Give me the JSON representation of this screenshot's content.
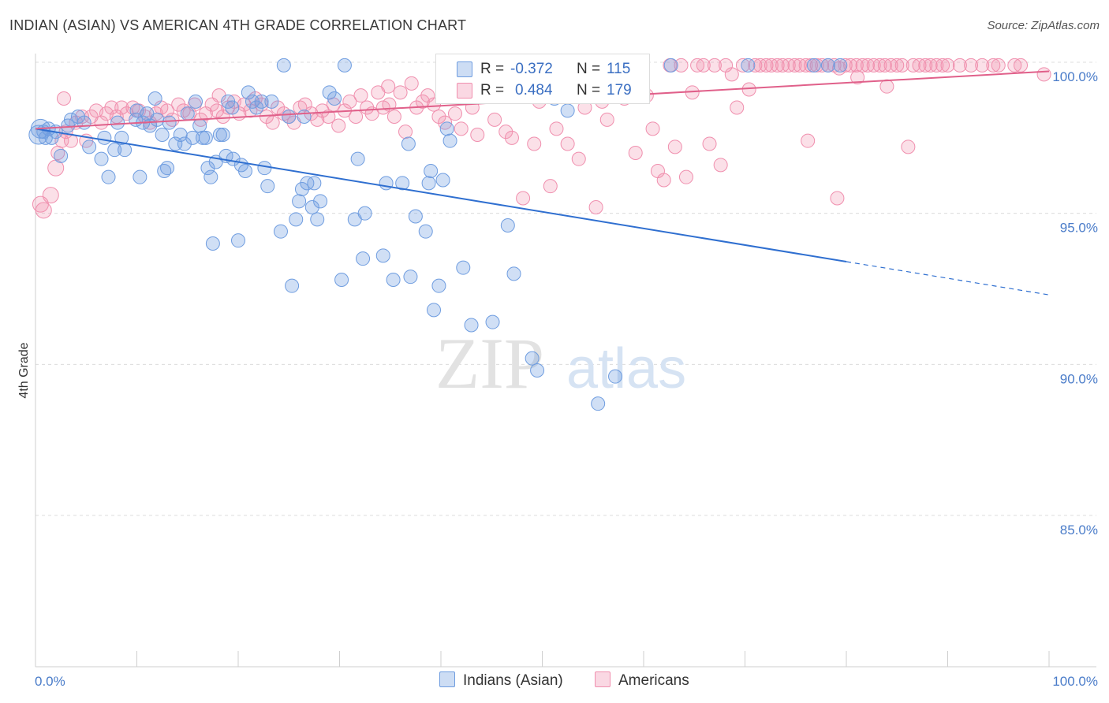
{
  "header": {
    "title": "INDIAN (ASIAN) VS AMERICAN 4TH GRADE CORRELATION CHART",
    "source": "Source: ZipAtlas.com"
  },
  "watermark": {
    "zip": "ZIP",
    "atlas": "atlas"
  },
  "legend": {
    "r_label": "R =",
    "n_label": "N =",
    "rows": [
      {
        "name": "Indians (Asian)",
        "r": "-0.372",
        "n": "115",
        "color": "#6f9de0"
      },
      {
        "name": "Americans",
        "r": "0.484",
        "n": "179",
        "color": "#f08fae"
      }
    ]
  },
  "chart_data": {
    "type": "scatter",
    "title": "INDIAN (ASIAN) VS AMERICAN 4TH GRADE CORRELATION CHART",
    "xlabel": "",
    "ylabel": "4th Grade",
    "xlim": [
      0,
      100
    ],
    "ylim": [
      80.5,
      100.5
    ],
    "x_tick_labels": [
      "0.0%",
      "100.0%"
    ],
    "y_ticks": [
      100,
      95,
      90,
      85
    ],
    "y_tick_labels": [
      "100.0%",
      "95.0%",
      "90.0%",
      "85.0%"
    ],
    "grid": true,
    "legend_position": "bottom-center",
    "colors": {
      "Indians (Asian)": "#6f9de0",
      "Americans": "#f08fae",
      "Indians (Asian) line": "#2f6fd0",
      "Americans line": "#e0608a"
    },
    "series": [
      {
        "name": "Indians (Asian)",
        "trend": {
          "x": [
            0,
            80
          ],
          "y": [
            97.8,
            93.4
          ],
          "dashed_to": [
            100,
            92.3
          ]
        },
        "points": [
          [
            0.3,
            97.6
          ],
          [
            0.5,
            97.8
          ],
          [
            0.8,
            97.7
          ],
          [
            1.0,
            97.5
          ],
          [
            1.3,
            97.8
          ],
          [
            1.6,
            97.5
          ],
          [
            2.0,
            97.7
          ],
          [
            2.5,
            96.9
          ],
          [
            3.2,
            97.9
          ],
          [
            3.5,
            98.1
          ],
          [
            4.2,
            98.2
          ],
          [
            4.8,
            98.0
          ],
          [
            5.3,
            97.2
          ],
          [
            6.5,
            96.8
          ],
          [
            6.8,
            97.5
          ],
          [
            7.2,
            96.2
          ],
          [
            7.8,
            97.1
          ],
          [
            8.1,
            98.0
          ],
          [
            8.5,
            97.5
          ],
          [
            8.8,
            97.1
          ],
          [
            10.0,
            98.4
          ],
          [
            10.3,
            96.2
          ],
          [
            10.6,
            98.0
          ],
          [
            11.0,
            98.3
          ],
          [
            11.3,
            97.9
          ],
          [
            11.8,
            98.8
          ],
          [
            12.0,
            98.1
          ],
          [
            12.5,
            97.6
          ],
          [
            12.7,
            96.4
          ],
          [
            13.2,
            98.0
          ],
          [
            13.0,
            96.5
          ],
          [
            13.8,
            97.3
          ],
          [
            14.3,
            97.6
          ],
          [
            14.7,
            97.3
          ],
          [
            15.0,
            98.3
          ],
          [
            15.5,
            97.5
          ],
          [
            15.8,
            98.7
          ],
          [
            16.2,
            97.9
          ],
          [
            16.5,
            97.5
          ],
          [
            16.8,
            97.5
          ],
          [
            17.0,
            96.5
          ],
          [
            17.3,
            96.2
          ],
          [
            17.5,
            94.0
          ],
          [
            17.8,
            96.7
          ],
          [
            18.2,
            97.6
          ],
          [
            18.5,
            97.6
          ],
          [
            18.8,
            96.9
          ],
          [
            19.0,
            98.7
          ],
          [
            19.5,
            96.8
          ],
          [
            20.0,
            94.1
          ],
          [
            20.3,
            96.6
          ],
          [
            20.7,
            96.4
          ],
          [
            21.0,
            99.0
          ],
          [
            21.4,
            98.7
          ],
          [
            21.8,
            98.5
          ],
          [
            22.3,
            98.7
          ],
          [
            22.6,
            96.5
          ],
          [
            22.9,
            95.9
          ],
          [
            23.3,
            98.7
          ],
          [
            24.2,
            94.4
          ],
          [
            24.5,
            99.9
          ],
          [
            25.0,
            98.2
          ],
          [
            25.3,
            92.6
          ],
          [
            25.7,
            94.8
          ],
          [
            26.0,
            95.4
          ],
          [
            26.3,
            95.8
          ],
          [
            26.8,
            96.0
          ],
          [
            27.3,
            95.2
          ],
          [
            27.5,
            96.0
          ],
          [
            27.8,
            94.8
          ],
          [
            28.1,
            95.4
          ],
          [
            29.0,
            99.0
          ],
          [
            29.5,
            98.8
          ],
          [
            30.2,
            92.8
          ],
          [
            30.5,
            99.9
          ],
          [
            31.5,
            94.8
          ],
          [
            31.8,
            96.8
          ],
          [
            32.3,
            93.5
          ],
          [
            32.5,
            95.0
          ],
          [
            34.3,
            93.6
          ],
          [
            34.6,
            96.0
          ],
          [
            35.3,
            92.8
          ],
          [
            36.2,
            96.0
          ],
          [
            36.8,
            97.3
          ],
          [
            37.0,
            92.9
          ],
          [
            37.5,
            94.9
          ],
          [
            38.5,
            94.4
          ],
          [
            38.8,
            96.0
          ],
          [
            39.0,
            96.4
          ],
          [
            39.3,
            91.8
          ],
          [
            39.8,
            92.6
          ],
          [
            40.2,
            96.1
          ],
          [
            40.6,
            97.8
          ],
          [
            40.9,
            97.4
          ],
          [
            42.2,
            93.2
          ],
          [
            43.0,
            91.3
          ],
          [
            44.3,
            99.9
          ],
          [
            45.1,
            91.4
          ],
          [
            46.6,
            94.6
          ],
          [
            47.2,
            93.0
          ],
          [
            49.0,
            90.2
          ],
          [
            49.5,
            89.8
          ],
          [
            51.2,
            98.8
          ],
          [
            52.5,
            98.4
          ],
          [
            55.5,
            88.7
          ],
          [
            57.2,
            89.6
          ],
          [
            70.3,
            99.9
          ],
          [
            76.8,
            99.9
          ],
          [
            78.2,
            99.9
          ],
          [
            79.4,
            99.9
          ],
          [
            49.8,
            99.9
          ],
          [
            59.0,
            99.9
          ],
          [
            62.7,
            99.9
          ],
          [
            19.4,
            98.5
          ],
          [
            26.5,
            98.2
          ],
          [
            9.9,
            98.1
          ]
        ]
      },
      {
        "name": "Americans",
        "trend": {
          "x": [
            0,
            100
          ],
          "y": [
            97.8,
            99.7
          ]
        },
        "points": [
          [
            0.5,
            95.3
          ],
          [
            0.8,
            95.1
          ],
          [
            1.5,
            95.6
          ],
          [
            2.0,
            96.5
          ],
          [
            2.2,
            97.0
          ],
          [
            2.6,
            97.4
          ],
          [
            3.0,
            97.7
          ],
          [
            3.5,
            97.4
          ],
          [
            4.0,
            98.0
          ],
          [
            4.6,
            98.2
          ],
          [
            5.0,
            97.4
          ],
          [
            5.5,
            98.2
          ],
          [
            6.0,
            98.4
          ],
          [
            6.5,
            98.0
          ],
          [
            7.0,
            98.3
          ],
          [
            7.5,
            98.5
          ],
          [
            8.0,
            98.2
          ],
          [
            8.5,
            98.5
          ],
          [
            9.0,
            98.3
          ],
          [
            9.6,
            98.5
          ],
          [
            10.2,
            98.4
          ],
          [
            10.8,
            98.2
          ],
          [
            11.3,
            98.0
          ],
          [
            11.9,
            98.3
          ],
          [
            12.4,
            98.5
          ],
          [
            13.0,
            98.4
          ],
          [
            13.5,
            98.1
          ],
          [
            14.1,
            98.6
          ],
          [
            14.6,
            98.4
          ],
          [
            15.2,
            98.3
          ],
          [
            15.7,
            98.6
          ],
          [
            16.3,
            98.1
          ],
          [
            16.8,
            98.3
          ],
          [
            17.4,
            98.6
          ],
          [
            17.9,
            98.4
          ],
          [
            18.5,
            98.2
          ],
          [
            19.0,
            98.5
          ],
          [
            19.6,
            98.7
          ],
          [
            20.1,
            98.3
          ],
          [
            20.6,
            98.6
          ],
          [
            21.2,
            98.4
          ],
          [
            21.7,
            98.8
          ],
          [
            22.3,
            98.6
          ],
          [
            22.8,
            98.2
          ],
          [
            23.4,
            98.0
          ],
          [
            23.9,
            98.5
          ],
          [
            24.5,
            98.3
          ],
          [
            25.0,
            98.2
          ],
          [
            25.5,
            98.0
          ],
          [
            26.1,
            98.5
          ],
          [
            26.6,
            98.6
          ],
          [
            27.2,
            98.3
          ],
          [
            27.8,
            98.1
          ],
          [
            28.3,
            98.4
          ],
          [
            28.9,
            98.2
          ],
          [
            29.4,
            98.6
          ],
          [
            29.9,
            97.9
          ],
          [
            30.5,
            98.4
          ],
          [
            31.0,
            98.7
          ],
          [
            31.6,
            98.2
          ],
          [
            32.1,
            98.9
          ],
          [
            32.7,
            98.5
          ],
          [
            33.2,
            98.3
          ],
          [
            33.8,
            99.0
          ],
          [
            34.3,
            98.5
          ],
          [
            34.9,
            98.6
          ],
          [
            35.4,
            98.2
          ],
          [
            36.0,
            99.0
          ],
          [
            36.5,
            97.7
          ],
          [
            37.1,
            99.3
          ],
          [
            37.6,
            98.5
          ],
          [
            38.2,
            98.7
          ],
          [
            38.7,
            98.9
          ],
          [
            39.3,
            98.6
          ],
          [
            39.8,
            98.2
          ],
          [
            40.4,
            98.0
          ],
          [
            40.9,
            99.1
          ],
          [
            41.4,
            98.3
          ],
          [
            42.0,
            97.8
          ],
          [
            42.5,
            99.0
          ],
          [
            43.1,
            98.5
          ],
          [
            43.6,
            97.6
          ],
          [
            44.2,
            98.9
          ],
          [
            44.7,
            99.1
          ],
          [
            45.3,
            98.1
          ],
          [
            45.9,
            99.3
          ],
          [
            46.4,
            97.7
          ],
          [
            47.0,
            97.5
          ],
          [
            47.5,
            99.0
          ],
          [
            48.1,
            95.5
          ],
          [
            48.6,
            99.1
          ],
          [
            49.2,
            97.3
          ],
          [
            49.7,
            98.7
          ],
          [
            50.3,
            98.9
          ],
          [
            50.8,
            95.9
          ],
          [
            51.4,
            97.8
          ],
          [
            52.0,
            99.0
          ],
          [
            52.5,
            97.3
          ],
          [
            53.1,
            99.5
          ],
          [
            53.6,
            96.8
          ],
          [
            54.2,
            98.5
          ],
          [
            54.8,
            99.1
          ],
          [
            55.3,
            95.2
          ],
          [
            55.9,
            98.7
          ],
          [
            56.4,
            98.1
          ],
          [
            57.0,
            99.3
          ],
          [
            57.5,
            99.1
          ],
          [
            58.1,
            98.8
          ],
          [
            58.6,
            99.1
          ],
          [
            59.2,
            97.0
          ],
          [
            59.8,
            99.9
          ],
          [
            60.3,
            98.9
          ],
          [
            60.9,
            97.8
          ],
          [
            61.4,
            96.4
          ],
          [
            62.0,
            96.1
          ],
          [
            62.6,
            99.9
          ],
          [
            63.1,
            97.2
          ],
          [
            63.7,
            99.9
          ],
          [
            64.2,
            96.2
          ],
          [
            64.8,
            99.0
          ],
          [
            65.3,
            99.9
          ],
          [
            65.9,
            99.9
          ],
          [
            66.5,
            97.3
          ],
          [
            67.0,
            99.9
          ],
          [
            67.6,
            96.6
          ],
          [
            68.1,
            99.9
          ],
          [
            68.7,
            99.6
          ],
          [
            69.2,
            98.5
          ],
          [
            69.8,
            99.9
          ],
          [
            70.4,
            99.1
          ],
          [
            71.0,
            99.9
          ],
          [
            71.5,
            99.9
          ],
          [
            72.1,
            99.9
          ],
          [
            72.6,
            99.9
          ],
          [
            73.2,
            99.9
          ],
          [
            73.7,
            99.9
          ],
          [
            74.3,
            99.9
          ],
          [
            74.9,
            99.9
          ],
          [
            75.4,
            99.9
          ],
          [
            76.0,
            99.9
          ],
          [
            76.5,
            99.9
          ],
          [
            77.1,
            99.9
          ],
          [
            77.6,
            99.9
          ],
          [
            78.2,
            99.9
          ],
          [
            78.8,
            99.9
          ],
          [
            79.3,
            99.8
          ],
          [
            79.9,
            99.9
          ],
          [
            80.4,
            99.9
          ],
          [
            81.0,
            99.9
          ],
          [
            81.6,
            99.9
          ],
          [
            82.1,
            99.9
          ],
          [
            82.7,
            99.9
          ],
          [
            83.3,
            99.9
          ],
          [
            83.8,
            99.9
          ],
          [
            84.4,
            99.9
          ],
          [
            85.0,
            99.9
          ],
          [
            85.5,
            99.9
          ],
          [
            86.1,
            97.2
          ],
          [
            86.6,
            99.9
          ],
          [
            87.2,
            99.9
          ],
          [
            87.8,
            99.9
          ],
          [
            88.3,
            99.9
          ],
          [
            88.9,
            99.9
          ],
          [
            89.5,
            99.9
          ],
          [
            90.0,
            99.9
          ],
          [
            91.2,
            99.9
          ],
          [
            92.3,
            99.9
          ],
          [
            93.4,
            99.9
          ],
          [
            94.5,
            99.9
          ],
          [
            95.0,
            99.9
          ],
          [
            96.6,
            99.9
          ],
          [
            97.2,
            99.9
          ],
          [
            99.5,
            99.6
          ],
          [
            76.2,
            97.4
          ],
          [
            81.1,
            99.5
          ],
          [
            84.0,
            99.2
          ],
          [
            79.1,
            95.5
          ],
          [
            34.8,
            99.2
          ],
          [
            2.8,
            98.8
          ],
          [
            18.1,
            98.9
          ]
        ]
      }
    ]
  }
}
